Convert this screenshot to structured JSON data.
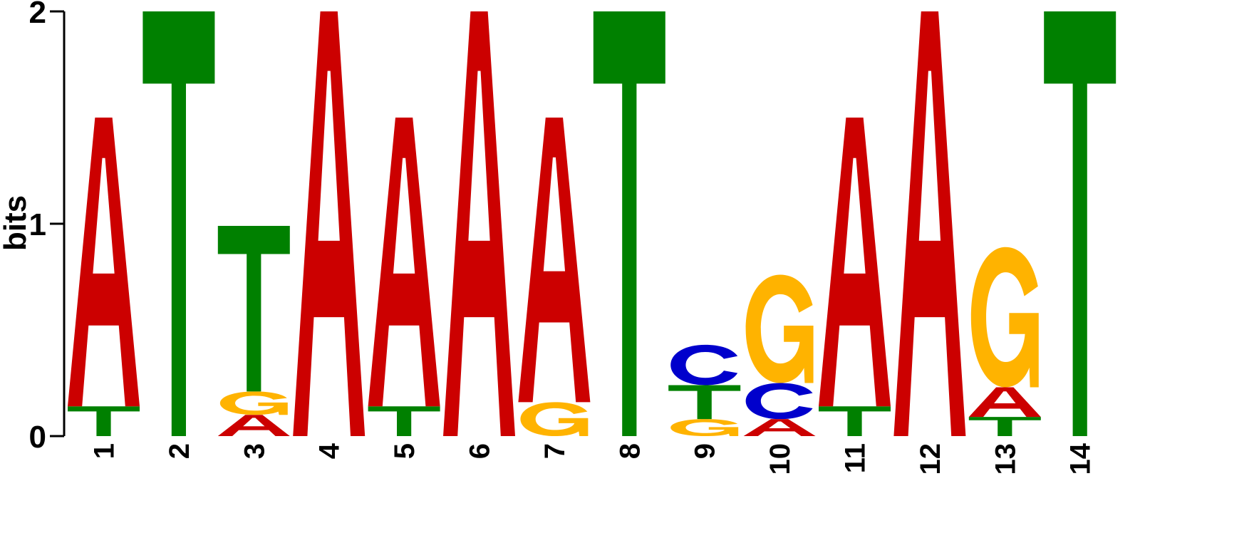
{
  "chart_data": {
    "type": "sequence-logo",
    "ylabel": "bits",
    "ylim": [
      0,
      2
    ],
    "yticks": [
      "0",
      "1",
      "2"
    ],
    "colors": {
      "A": "#CC0000",
      "C": "#0000CC",
      "G": "#FFB300",
      "T": "#008000"
    },
    "positions": [
      {
        "label": "1",
        "stack": [
          {
            "letter": "T",
            "height": 0.14
          },
          {
            "letter": "A",
            "height": 1.36
          }
        ]
      },
      {
        "label": "2",
        "stack": [
          {
            "letter": "T",
            "height": 2.0
          }
        ]
      },
      {
        "label": "3",
        "stack": [
          {
            "letter": "A",
            "height": 0.1
          },
          {
            "letter": "G",
            "height": 0.11
          },
          {
            "letter": "T",
            "height": 0.78
          }
        ]
      },
      {
        "label": "4",
        "stack": [
          {
            "letter": "A",
            "height": 2.0
          }
        ]
      },
      {
        "label": "5",
        "stack": [
          {
            "letter": "T",
            "height": 0.14
          },
          {
            "letter": "A",
            "height": 1.36
          }
        ]
      },
      {
        "label": "6",
        "stack": [
          {
            "letter": "A",
            "height": 2.0
          }
        ]
      },
      {
        "label": "7",
        "stack": [
          {
            "letter": "G",
            "height": 0.16
          },
          {
            "letter": "A",
            "height": 1.34
          }
        ]
      },
      {
        "label": "8",
        "stack": [
          {
            "letter": "T",
            "height": 2.0
          }
        ]
      },
      {
        "label": "9",
        "stack": [
          {
            "letter": "G",
            "height": 0.08
          },
          {
            "letter": "T",
            "height": 0.16
          },
          {
            "letter": "C",
            "height": 0.19
          }
        ]
      },
      {
        "label": "10",
        "stack": [
          {
            "letter": "A",
            "height": 0.08
          },
          {
            "letter": "C",
            "height": 0.17
          },
          {
            "letter": "G",
            "height": 0.51
          }
        ]
      },
      {
        "label": "11",
        "stack": [
          {
            "letter": "T",
            "height": 0.14
          },
          {
            "letter": "A",
            "height": 1.36
          }
        ]
      },
      {
        "label": "12",
        "stack": [
          {
            "letter": "A",
            "height": 2.0
          }
        ]
      },
      {
        "label": "13",
        "stack": [
          {
            "letter": "T",
            "height": 0.09
          },
          {
            "letter": "A",
            "height": 0.14
          },
          {
            "letter": "G",
            "height": 0.66
          }
        ]
      },
      {
        "label": "14",
        "stack": [
          {
            "letter": "T",
            "height": 2.0
          }
        ]
      }
    ]
  }
}
